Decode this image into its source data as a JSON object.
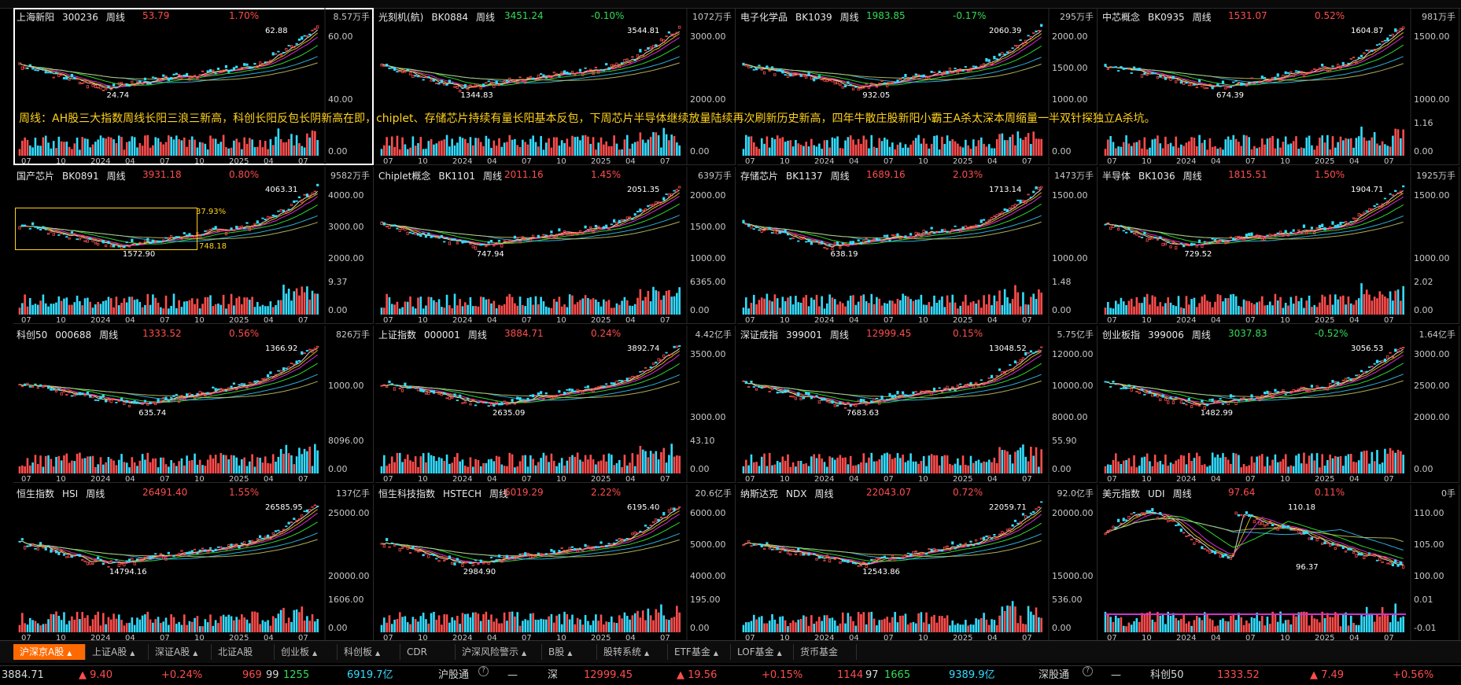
{
  "annotation": "周线：AH股三大指数周线长阳三浪三新高，科创长阳反包长阴新高在即，chiplet、存储芯片持续有量长阳基本反包，下周芯片半导体继续放量陆续再次刷新历史新高，四年牛散庄股新阳小霸王A杀太深本周缩量一半双针探独立A杀坑。",
  "x_labels": [
    "07",
    "10",
    "2024",
    "04",
    "07",
    "10",
    "2025",
    "04",
    "07"
  ],
  "panels": [
    {
      "name": "上海新阳",
      "code": "300236",
      "period": "周线",
      "price": "53.79",
      "pct": "1.70%",
      "dir": "up",
      "vol": "8.57万手",
      "hi": "62.88",
      "lo": "24.74",
      "y_ticks": [
        "60.00",
        "40.00"
      ],
      "vol_ticks": [
        "",
        "0.00"
      ],
      "selected": true
    },
    {
      "name": "光刻机(航)",
      "code": "BK0884",
      "period": "周线",
      "price": "3451.24",
      "pct": "-0.10%",
      "dir": "dn",
      "vol": "1072万手",
      "hi": "3544.81",
      "lo": "1344.83",
      "y_ticks": [
        "3000.00",
        "2000.00"
      ],
      "vol_ticks": [
        "",
        "0.00"
      ]
    },
    {
      "name": "电子化学品",
      "code": "BK1039",
      "period": "周线",
      "price": "1983.85",
      "pct": "-0.17%",
      "dir": "dn",
      "vol": "295万手",
      "hi": "2060.39",
      "lo": "932.05",
      "y_ticks": [
        "2000.00",
        "1500.00",
        "1000.00"
      ],
      "vol_ticks": [
        "",
        "0.00"
      ]
    },
    {
      "name": "中芯概念",
      "code": "BK0935",
      "period": "周线",
      "price": "1531.07",
      "pct": "0.52%",
      "dir": "up",
      "vol": "981万手",
      "hi": "1604.87",
      "lo": "674.39",
      "y_ticks": [
        "1500.00",
        "1000.00"
      ],
      "vol_ticks": [
        "1.16",
        "0.00"
      ]
    },
    {
      "name": "国产芯片",
      "code": "BK0891",
      "period": "周线",
      "price": "3931.18",
      "pct": "0.80%",
      "dir": "up",
      "vol": "9582万手",
      "hi": "4063.31",
      "lo": "1572.90",
      "y_ticks": [
        "4000.00",
        "3000.00",
        "2000.00"
      ],
      "vol_ticks": [
        "9.37",
        "0.00"
      ],
      "box": {
        "pct": "37.93%",
        "val": "748.18"
      }
    },
    {
      "name": "Chiplet概念",
      "code": "BK1101",
      "period": "周线",
      "price": "2011.16",
      "pct": "1.45%",
      "dir": "up",
      "vol": "639万手",
      "hi": "2051.35",
      "lo": "747.94",
      "y_ticks": [
        "2000.00",
        "1500.00",
        "1000.00"
      ],
      "vol_ticks": [
        "6365.00",
        "0.00"
      ]
    },
    {
      "name": "存储芯片",
      "code": "BK1137",
      "period": "周线",
      "price": "1689.16",
      "pct": "2.03%",
      "dir": "up",
      "vol": "1473万手",
      "hi": "1713.14",
      "lo": "638.19",
      "y_ticks": [
        "1500.00",
        "1000.00"
      ],
      "vol_ticks": [
        "1.48",
        "0.00"
      ]
    },
    {
      "name": "半导体",
      "code": "BK1036",
      "period": "周线",
      "price": "1815.51",
      "pct": "1.50%",
      "dir": "up",
      "vol": "1925万手",
      "hi": "1904.71",
      "lo": "729.52",
      "y_ticks": [
        "1500.00",
        "1000.00"
      ],
      "vol_ticks": [
        "2.02",
        "0.00"
      ]
    },
    {
      "name": "科创50",
      "code": "000688",
      "period": "周线",
      "price": "1333.52",
      "pct": "0.56%",
      "dir": "up",
      "vol": "826万手",
      "hi": "1366.92",
      "lo": "635.74",
      "y_ticks": [
        "1000.00"
      ],
      "vol_ticks": [
        "8096.00",
        "0.00"
      ]
    },
    {
      "name": "上证指数",
      "code": "000001",
      "period": "周线",
      "price": "3884.71",
      "pct": "0.24%",
      "dir": "up",
      "vol": "4.42亿手",
      "hi": "3892.74",
      "lo": "2635.09",
      "y_ticks": [
        "3500.00",
        "3000.00"
      ],
      "vol_ticks": [
        "43.10",
        "0.00"
      ]
    },
    {
      "name": "深证成指",
      "code": "399001",
      "period": "周线",
      "price": "12999.45",
      "pct": "0.15%",
      "dir": "up",
      "vol": "5.75亿手",
      "hi": "13048.52",
      "lo": "7683.63",
      "y_ticks": [
        "12000.00",
        "10000.00",
        "8000.00"
      ],
      "vol_ticks": [
        "55.90",
        "0.00"
      ]
    },
    {
      "name": "创业板指",
      "code": "399006",
      "period": "周线",
      "price": "3037.83",
      "pct": "-0.52%",
      "dir": "dn",
      "vol": "1.64亿手",
      "hi": "3056.53",
      "lo": "1482.99",
      "y_ticks": [
        "3000.00",
        "2500.00",
        "2000.00"
      ],
      "vol_ticks": [
        "",
        "0.00"
      ]
    },
    {
      "name": "恒生指数",
      "code": "HSI",
      "period": "周线",
      "price": "26491.40",
      "pct": "1.55%",
      "dir": "up",
      "vol": "137亿手",
      "hi": "26585.95",
      "lo": "14794.16",
      "y_ticks": [
        "25000.00",
        "20000.00"
      ],
      "vol_ticks": [
        "1606.00",
        "0.00"
      ]
    },
    {
      "name": "恒生科技指数",
      "code": "HSTECH",
      "period": "周线",
      "price": "6019.29",
      "pct": "2.22%",
      "dir": "up",
      "vol": "20.6亿手",
      "hi": "6195.40",
      "lo": "2984.90",
      "y_ticks": [
        "6000.00",
        "5000.00",
        "4000.00"
      ],
      "vol_ticks": [
        "195.00",
        "0.00"
      ]
    },
    {
      "name": "纳斯达克",
      "code": "NDX",
      "period": "周线",
      "price": "22043.07",
      "pct": "0.72%",
      "dir": "up",
      "vol": "92.0亿手",
      "hi": "22059.71",
      "lo": "12543.86",
      "y_ticks": [
        "20000.00",
        "15000.00"
      ],
      "vol_ticks": [
        "536.00",
        "0.00"
      ]
    },
    {
      "name": "美元指数",
      "code": "UDI",
      "period": "周线",
      "price": "97.64",
      "pct": "0.11%",
      "dir": "up",
      "vol": "0手",
      "hi": "110.18",
      "lo": "96.37",
      "y_ticks": [
        "110.00",
        "105.00",
        "100.00"
      ],
      "vol_ticks": [
        "0.01",
        "-0.01"
      ],
      "usd": true
    }
  ],
  "tabs": [
    {
      "label": "沪深京A股",
      "arrow": "▲",
      "active": true
    },
    {
      "label": "上证A股",
      "arrow": "▲"
    },
    {
      "label": "深证A股",
      "arrow": "▲"
    },
    {
      "label": "北证A股",
      "arrow": ""
    },
    {
      "label": "创业板",
      "arrow": "▲"
    },
    {
      "label": "科创板",
      "arrow": "▲"
    },
    {
      "label": "CDR",
      "arrow": ""
    },
    {
      "label": "沪深风险警示",
      "arrow": "▲"
    },
    {
      "label": "B股",
      "arrow": "▲"
    },
    {
      "label": "股转系统",
      "arrow": "▲"
    },
    {
      "label": "ETF基金",
      "arrow": "▲"
    },
    {
      "label": "LOF基金",
      "arrow": "▲"
    },
    {
      "label": "货币基金",
      "arrow": ""
    }
  ],
  "status": {
    "sh_value": "3884.71",
    "sh_change": "▲ 9.40",
    "sh_pct": "+0.24%",
    "sh_up": "969",
    "sh_flat": "99",
    "sh_down": "1255",
    "sh_amount": "6919.7亿",
    "hgt_label": "沪股通",
    "hgt_value": "—",
    "sz_label": "深",
    "sz_value": "12999.45",
    "sz_change": "▲ 19.56",
    "sz_pct": "+0.15%",
    "sz_up": "1144",
    "sz_flat": "97",
    "sz_down": "1665",
    "sz_amount": "9389.9亿",
    "sgt_label": "深股通",
    "sgt_value": "—",
    "kc_label": "科创50",
    "kc_value": "1333.52",
    "kc_change": "▲ 7.49",
    "kc_pct": "+0.56%"
  },
  "colors": {
    "up": "#ff4d4d",
    "down": "#33dd55",
    "volume_down": "#33ddff",
    "annotation": "#ffd21a",
    "active_tab": "#ff6a00"
  }
}
